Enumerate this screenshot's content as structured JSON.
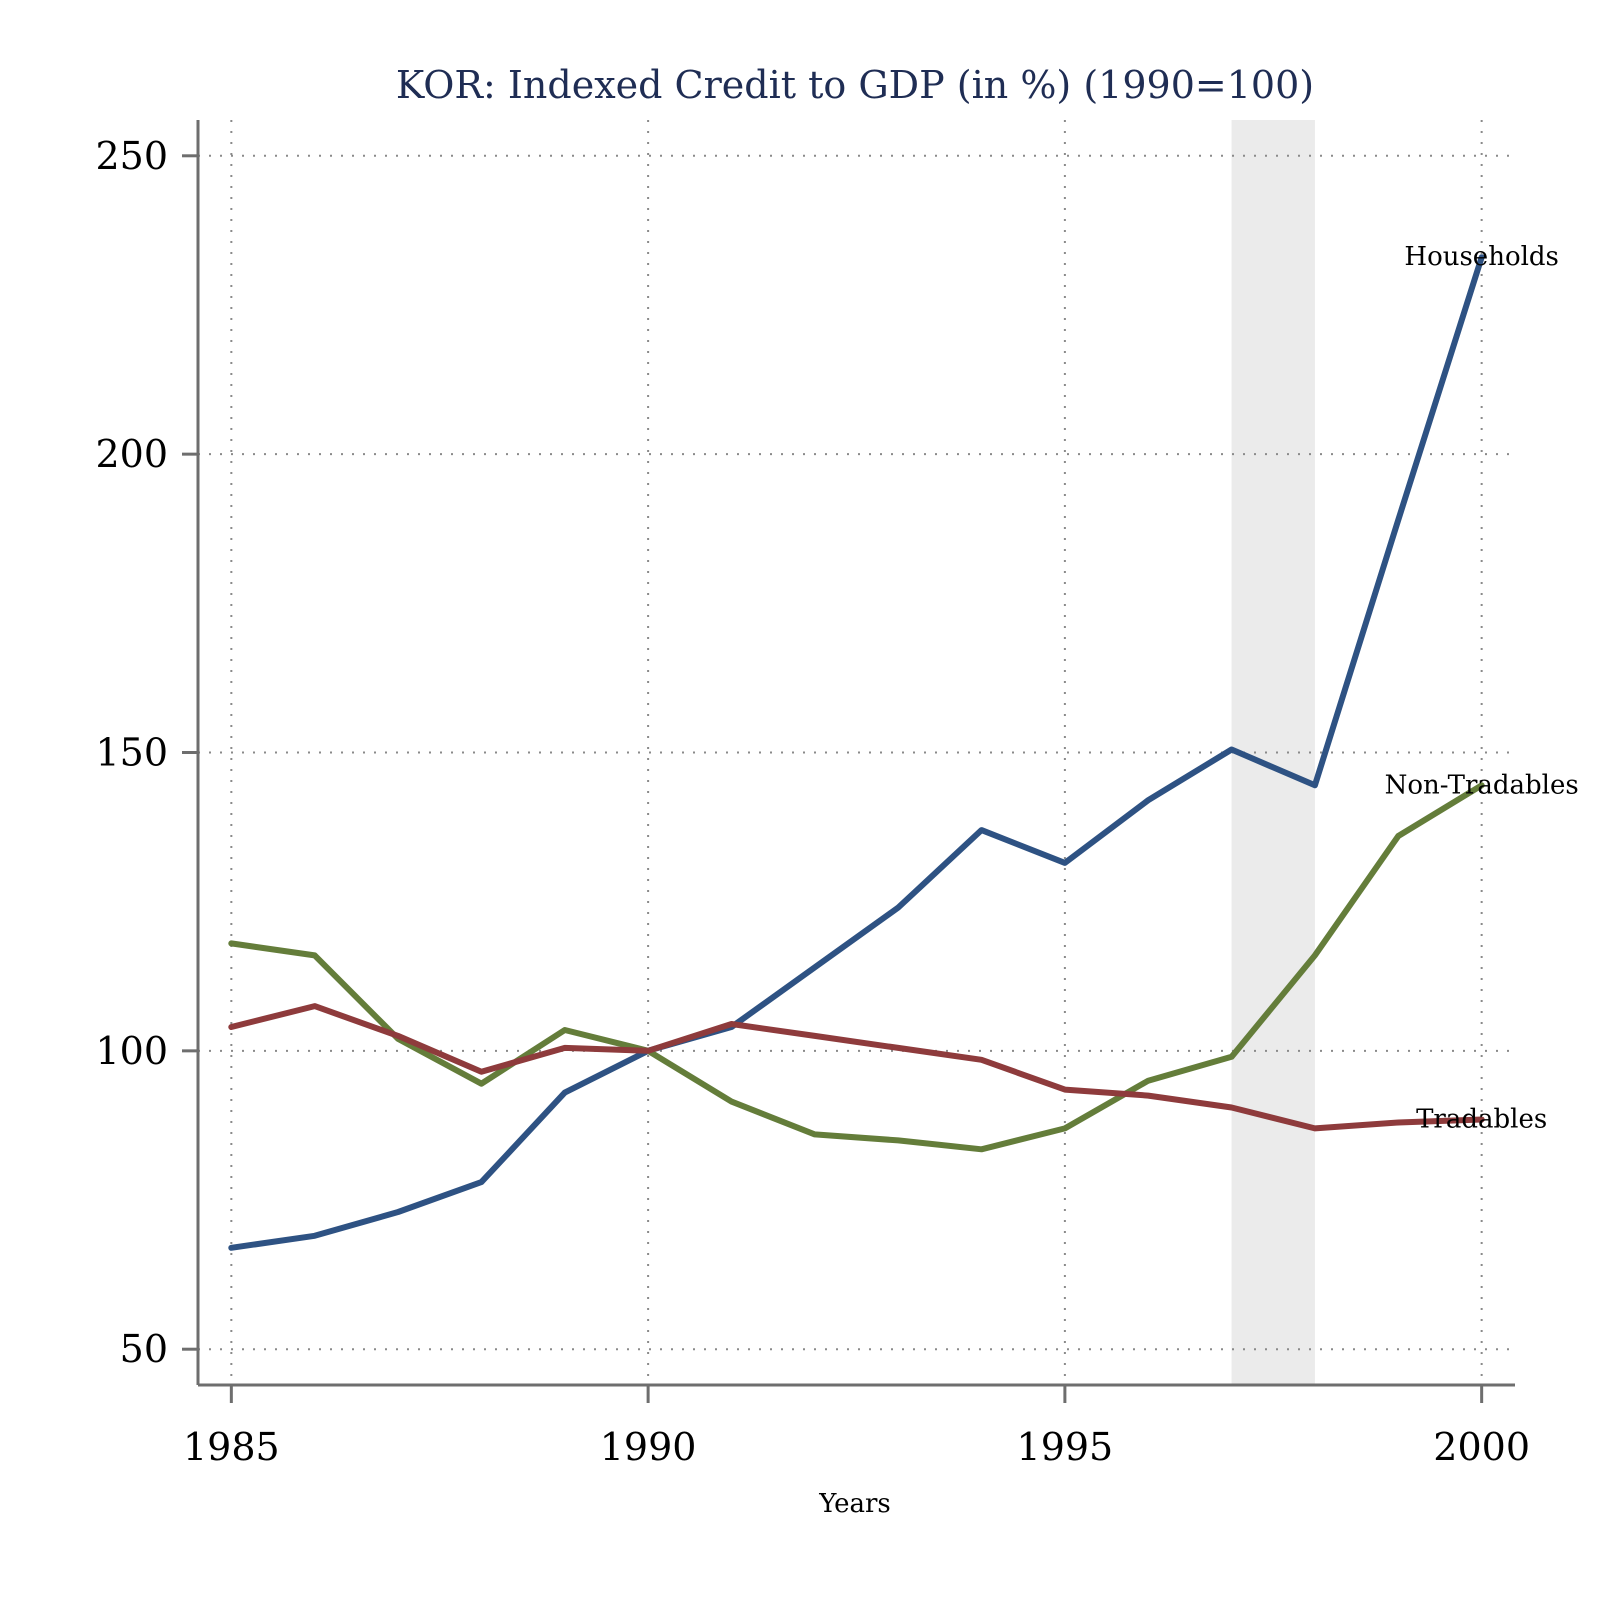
{
  "chart_data": {
    "type": "line",
    "title": "KOR: Indexed Credit to GDP (in %) (1990=100)",
    "xlabel": "Years",
    "ylabel": "",
    "x": [
      1985,
      1986,
      1987,
      1988,
      1989,
      1990,
      1991,
      1992,
      1993,
      1994,
      1995,
      1996,
      1997,
      1998,
      1999,
      2000
    ],
    "xlim": [
      1984.6,
      2000.4
    ],
    "ylim": [
      44,
      256
    ],
    "xticks": [
      1985,
      1990,
      1995,
      2000
    ],
    "yticks": [
      50,
      100,
      150,
      200,
      250
    ],
    "xtick_labels": [
      "1985",
      "1990",
      "1995",
      "2000"
    ],
    "ytick_labels": [
      "50",
      "100",
      "150",
      "200",
      "250"
    ],
    "grid": true,
    "legend": "none",
    "shaded_region": {
      "x_start": 1997,
      "x_end": 1998,
      "color": "#ebebeb"
    },
    "series": [
      {
        "name": "Households",
        "color": "#2e5283",
        "values": [
          67,
          69,
          73,
          78,
          93,
          100,
          104,
          114,
          124,
          137,
          131.5,
          142,
          150.5,
          144.5,
          189,
          233
        ]
      },
      {
        "name": "Non-Tradables",
        "color": "#647d3a",
        "values": [
          118,
          116,
          102,
          94.5,
          103.5,
          100,
          91.5,
          86,
          85,
          83.5,
          87,
          95,
          99,
          116,
          136,
          144.5
        ]
      },
      {
        "name": "Tradables",
        "color": "#8e3b3c",
        "values": [
          104,
          107.5,
          102.5,
          96.5,
          100.5,
          100,
          104.5,
          102.5,
          100.5,
          98.5,
          93.5,
          92.5,
          90.5,
          87,
          88,
          88.5
        ]
      }
    ]
  }
}
